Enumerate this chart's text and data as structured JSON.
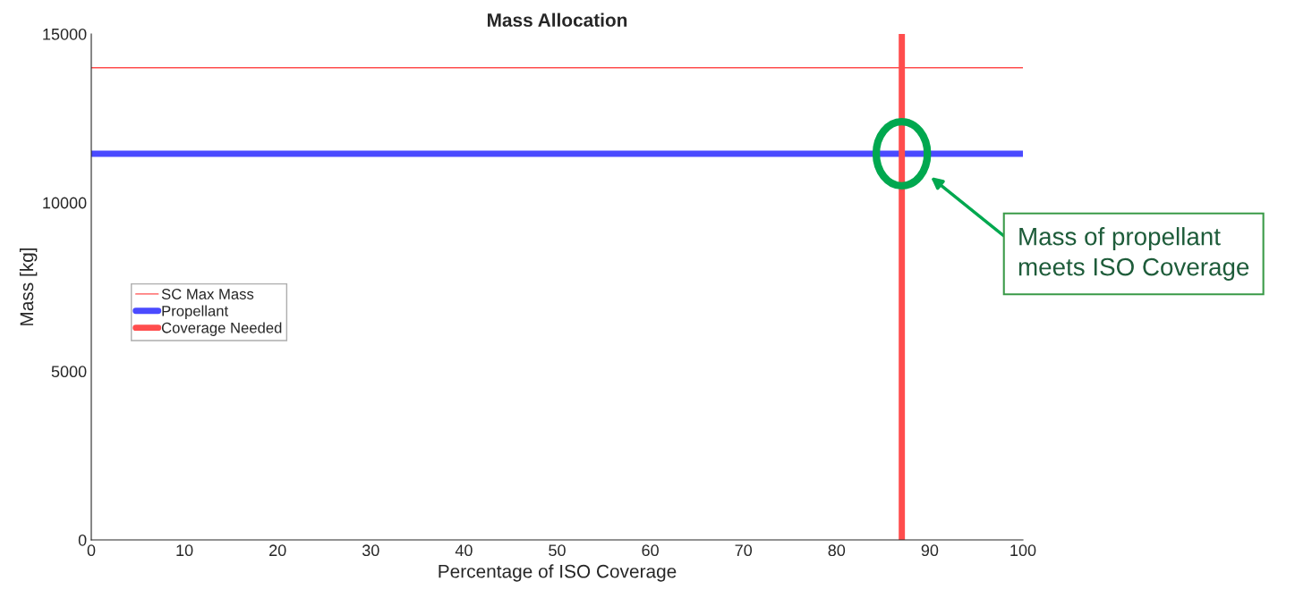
{
  "chart_data": {
    "type": "line",
    "title": "Mass Allocation",
    "xlabel": "Percentage of ISO Coverage",
    "ylabel": "Mass [kg]",
    "series": [
      {
        "name": "SC Max Mass",
        "color": "#ff4d4d",
        "x": [
          0,
          100
        ],
        "values": [
          14000,
          14000
        ]
      },
      {
        "name": "Propellant",
        "color": "#4a4aff",
        "x": [
          0,
          100
        ],
        "values": [
          11450,
          11450
        ]
      },
      {
        "name": "Coverage Needed",
        "color": "#ff4d4d",
        "x": [
          87,
          87
        ],
        "values": [
          0,
          15000
        ]
      }
    ],
    "xlim": [
      0,
      100
    ],
    "xticks": [
      0,
      10,
      20,
      30,
      40,
      50,
      60,
      70,
      80,
      90,
      100
    ],
    "ylim": [
      0,
      15000
    ],
    "yticks": [
      0,
      5000,
      10000,
      15000
    ],
    "annotations": [
      "Mass of propellant\nmeets ISO Coverage"
    ],
    "grid": false,
    "legend": "left",
    "marker": "none",
    "line_style": "solid"
  }
}
